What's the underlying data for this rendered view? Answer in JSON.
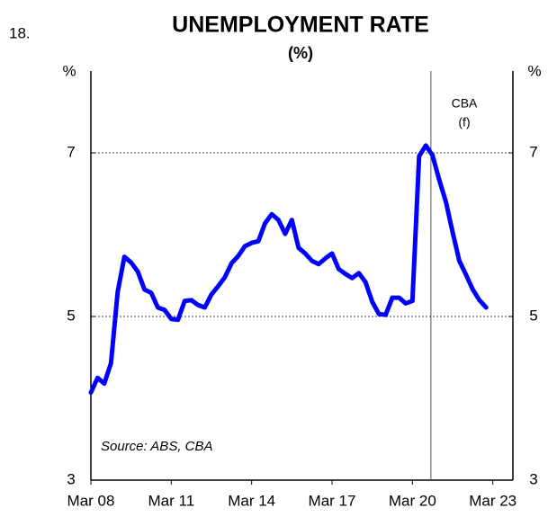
{
  "chart_data": {
    "type": "line",
    "number": "18.",
    "title": "UNEMPLOYMENT RATE",
    "subtitle": "(%)",
    "y_label": "%",
    "y2_label": "%",
    "source": "Source: ABS, CBA",
    "annotation": {
      "lines": [
        "CBA",
        "(f)"
      ],
      "x": 2020.94
    },
    "x": [
      2008.25,
      2008.5,
      2008.75,
      2009,
      2009.25,
      2009.5,
      2009.75,
      2010,
      2010.25,
      2010.5,
      2010.75,
      2011,
      2011.25,
      2011.5,
      2011.75,
      2012,
      2012.25,
      2012.5,
      2012.75,
      2013,
      2013.25,
      2013.5,
      2013.75,
      2014,
      2014.25,
      2014.5,
      2014.75,
      2015,
      2015.25,
      2015.5,
      2015.75,
      2016,
      2016.25,
      2016.5,
      2016.75,
      2017,
      2017.25,
      2017.5,
      2017.75,
      2018,
      2018.25,
      2018.5,
      2018.75,
      2019,
      2019.25,
      2019.5,
      2019.75,
      2020,
      2020.25,
      2020.5,
      2020.75,
      2021,
      2021.25,
      2021.5,
      2021.75,
      2022,
      2022.25,
      2022.5,
      2022.75,
      2023
    ],
    "series": [
      {
        "name": "Unemployment rate",
        "color": "#0000ff",
        "values": [
          4.07,
          4.25,
          4.18,
          4.43,
          5.3,
          5.73,
          5.66,
          5.55,
          5.33,
          5.29,
          5.11,
          5.08,
          4.97,
          4.96,
          5.19,
          5.2,
          5.14,
          5.11,
          5.27,
          5.37,
          5.48,
          5.65,
          5.74,
          5.86,
          5.9,
          5.92,
          6.14,
          6.25,
          6.18,
          6.01,
          6.18,
          5.84,
          5.77,
          5.68,
          5.64,
          5.71,
          5.77,
          5.58,
          5.52,
          5.47,
          5.53,
          5.42,
          5.18,
          5.03,
          5.02,
          5.23,
          5.23,
          5.16,
          5.19,
          6.96,
          7.09,
          6.97,
          6.67,
          6.4,
          6.03,
          5.68,
          5.51,
          5.33,
          5.2,
          5.11
        ]
      }
    ],
    "xlim": [
      2008.25,
      2024.0
    ],
    "xticks": [
      {
        "value": 2008.25,
        "label": "Mar 08"
      },
      {
        "value": 2011.25,
        "label": "Mar 11"
      },
      {
        "value": 2014.25,
        "label": "Mar 14"
      },
      {
        "value": 2017.25,
        "label": "Mar 17"
      },
      {
        "value": 2020.25,
        "label": "Mar 20"
      },
      {
        "value": 2023.25,
        "label": "Mar 23"
      }
    ],
    "ylim": [
      3,
      8
    ],
    "yticks": [
      3,
      5,
      7
    ],
    "y2lim": [
      3,
      8
    ],
    "y2ticks": [
      3,
      5,
      7
    ],
    "grid": true
  }
}
